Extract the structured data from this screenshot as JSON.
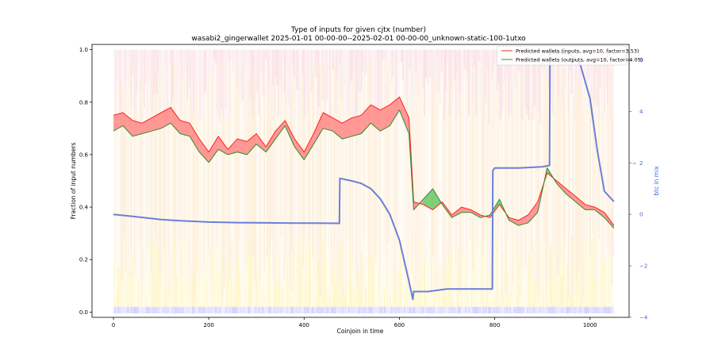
{
  "chart_data": {
    "type": "line",
    "title": "Type of inputs for given cjtx (number)",
    "subtitle": "wasabi2_gingerwallet 2025-01-01 00-00-00--2025-02-01 00-00-00_unknown-static-100-1utxo",
    "xlabel": "Coinjoin in time",
    "ylabel": "Fraction of input numbers",
    "y2label": "btc in mix",
    "xlim": [
      -45,
      1082
    ],
    "ylim": [
      -0.02,
      1.02
    ],
    "y2lim": [
      -4,
      6.6
    ],
    "xticks": [
      "0",
      "200",
      "400",
      "600",
      "800",
      "1000"
    ],
    "yticks": [
      "0.0",
      "0.2",
      "0.4",
      "0.6",
      "0.8",
      "1.0"
    ],
    "y2ticks": [
      "−4",
      "−2",
      "0",
      "2",
      "4",
      "6"
    ],
    "y2_extra_tick": "≈",
    "legend_position": "top-right",
    "colors": {
      "inputs": "#ff2020",
      "outputs": "#2e8b2e",
      "btc": "#6a7fd8",
      "fill_red": "#ff7070",
      "fill_green": "#55c055",
      "band_pink": "#f6c4c8",
      "band_orange": "#fbd9a8",
      "band_yellow": "#fff0a0",
      "band_blue": "#c8ccff"
    },
    "series": [
      {
        "name": "Predicted wallets (inputs, avg=10, factor=3.53)",
        "x": [
          0,
          20,
          40,
          60,
          80,
          100,
          120,
          140,
          160,
          180,
          200,
          220,
          240,
          260,
          280,
          300,
          320,
          340,
          360,
          380,
          400,
          420,
          440,
          460,
          480,
          500,
          520,
          540,
          560,
          580,
          600,
          620,
          630,
          650,
          670,
          690,
          710,
          730,
          750,
          770,
          790,
          810,
          830,
          850,
          870,
          890,
          910,
          930,
          950,
          970,
          990,
          1010,
          1030,
          1050
        ],
        "y": [
          0.75,
          0.76,
          0.73,
          0.72,
          0.74,
          0.76,
          0.78,
          0.73,
          0.72,
          0.66,
          0.61,
          0.67,
          0.62,
          0.66,
          0.65,
          0.68,
          0.63,
          0.69,
          0.73,
          0.66,
          0.61,
          0.68,
          0.76,
          0.74,
          0.72,
          0.74,
          0.75,
          0.79,
          0.77,
          0.79,
          0.82,
          0.74,
          0.42,
          0.41,
          0.39,
          0.42,
          0.37,
          0.4,
          0.39,
          0.37,
          0.36,
          0.41,
          0.36,
          0.35,
          0.37,
          0.42,
          0.53,
          0.5,
          0.47,
          0.44,
          0.41,
          0.4,
          0.38,
          0.33
        ]
      },
      {
        "name": "Predicted wallets (outputs, avg=10, factor=4.05)",
        "x": [
          0,
          20,
          40,
          60,
          80,
          100,
          120,
          140,
          160,
          180,
          200,
          220,
          240,
          260,
          280,
          300,
          320,
          340,
          360,
          380,
          400,
          420,
          440,
          460,
          480,
          500,
          520,
          540,
          560,
          580,
          600,
          620,
          630,
          650,
          670,
          690,
          710,
          730,
          750,
          770,
          790,
          810,
          830,
          850,
          870,
          890,
          910,
          930,
          950,
          970,
          990,
          1010,
          1030,
          1050
        ],
        "y": [
          0.69,
          0.71,
          0.67,
          0.68,
          0.69,
          0.7,
          0.72,
          0.68,
          0.67,
          0.61,
          0.57,
          0.62,
          0.6,
          0.61,
          0.6,
          0.64,
          0.61,
          0.66,
          0.71,
          0.63,
          0.58,
          0.64,
          0.7,
          0.69,
          0.66,
          0.67,
          0.68,
          0.72,
          0.69,
          0.71,
          0.77,
          0.68,
          0.39,
          0.43,
          0.47,
          0.41,
          0.36,
          0.38,
          0.38,
          0.36,
          0.37,
          0.43,
          0.35,
          0.33,
          0.34,
          0.38,
          0.55,
          0.49,
          0.45,
          0.42,
          0.39,
          0.39,
          0.36,
          0.32
        ]
      },
      {
        "name": "btc in mix",
        "axis": "right",
        "x": [
          0,
          50,
          100,
          140,
          200,
          260,
          320,
          380,
          420,
          474,
          475,
          500,
          520,
          540,
          560,
          580,
          600,
          610,
          620,
          628,
          630,
          660,
          700,
          740,
          780,
          790,
          795,
          796,
          800,
          850,
          900,
          915,
          916,
          930,
          960,
          980,
          1000,
          1015,
          1030,
          1050
        ],
        "y": [
          0.0,
          -0.1,
          -0.2,
          -0.25,
          -0.3,
          -0.32,
          -0.33,
          -0.34,
          -0.34,
          -0.35,
          1.4,
          1.3,
          1.2,
          1.0,
          0.6,
          0.0,
          -1.0,
          -1.8,
          -2.6,
          -3.3,
          -3.0,
          -3.0,
          -2.9,
          -2.9,
          -2.9,
          -2.9,
          -2.9,
          1.7,
          1.8,
          1.8,
          1.85,
          1.9,
          6.3,
          6.3,
          6.2,
          5.8,
          4.5,
          2.5,
          0.9,
          0.5
        ]
      }
    ]
  }
}
